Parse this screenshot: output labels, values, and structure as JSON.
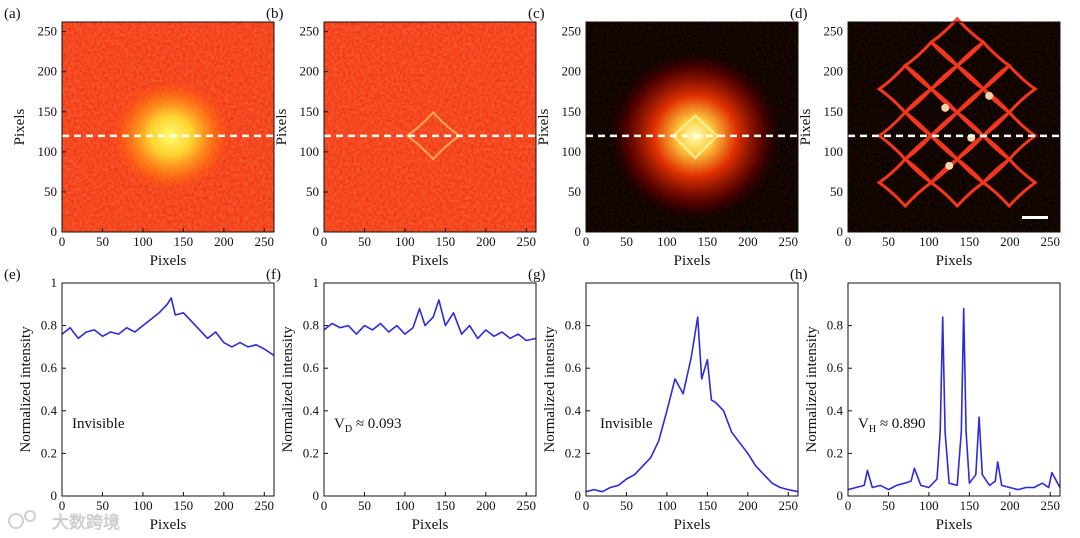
{
  "figure": {
    "watermark": "大数跨境",
    "colors": {
      "line": "#2b2bdd",
      "axis": "#111111",
      "hot_low": "#000000",
      "hot_high": "#ffff66"
    }
  },
  "chart_data": [
    {
      "type": "heatmap",
      "panel": "(a)",
      "xlabel": "Pixels",
      "ylabel": "Pixels",
      "xlim": [
        0,
        262
      ],
      "ylim": [
        0,
        262
      ],
      "xticks": [
        "0",
        "50",
        "100",
        "150",
        "200",
        "250"
      ],
      "yticks": [
        "0",
        "50",
        "100",
        "150",
        "200",
        "250"
      ],
      "background": "red",
      "pattern": "blob",
      "dashed_line_y": 120,
      "scale_bar": false
    },
    {
      "type": "heatmap",
      "panel": "(b)",
      "xlabel": "Pixels",
      "ylabel": "Pixels",
      "xlim": [
        0,
        262
      ],
      "ylim": [
        0,
        262
      ],
      "xticks": [
        "0",
        "50",
        "100",
        "150",
        "200",
        "250"
      ],
      "yticks": [
        "0",
        "50",
        "100",
        "150",
        "200",
        "250"
      ],
      "background": "red",
      "pattern": "faint-lattice",
      "dashed_line_y": 120,
      "scale_bar": false
    },
    {
      "type": "heatmap",
      "panel": "(c)",
      "xlabel": "Pixels",
      "ylabel": "Pixels",
      "xlim": [
        0,
        262
      ],
      "ylim": [
        0,
        262
      ],
      "xticks": [
        "0",
        "50",
        "100",
        "150",
        "200",
        "250"
      ],
      "yticks": [
        "0",
        "50",
        "100",
        "150",
        "200",
        "250"
      ],
      "background": "black",
      "pattern": "glow",
      "dashed_line_y": 120,
      "scale_bar": false
    },
    {
      "type": "heatmap",
      "panel": "(d)",
      "xlabel": "Pixels",
      "ylabel": "Pixels",
      "xlim": [
        0,
        262
      ],
      "ylim": [
        0,
        262
      ],
      "xticks": [
        "0",
        "50",
        "100",
        "150",
        "200",
        "250"
      ],
      "yticks": [
        "0",
        "50",
        "100",
        "150",
        "200",
        "250"
      ],
      "background": "black",
      "pattern": "lattice",
      "dashed_line_y": 120,
      "scale_bar": true
    },
    {
      "type": "line",
      "panel": "(e)",
      "xlabel": "Pixels",
      "ylabel": "Normalized intensity",
      "xlim": [
        0,
        262
      ],
      "ylim": [
        0,
        1
      ],
      "xticks": [
        "0",
        "50",
        "100",
        "150",
        "200",
        "250"
      ],
      "yticks": [
        "0",
        "0.2",
        "0.4",
        "0.6",
        "0.8",
        "1"
      ],
      "annotation": "Invisible",
      "annotation_sub": "",
      "x": [
        0,
        10,
        20,
        30,
        40,
        50,
        60,
        70,
        80,
        90,
        100,
        110,
        120,
        130,
        135,
        140,
        150,
        160,
        170,
        180,
        190,
        200,
        210,
        220,
        230,
        240,
        250,
        262
      ],
      "y": [
        0.76,
        0.79,
        0.74,
        0.77,
        0.78,
        0.75,
        0.77,
        0.76,
        0.79,
        0.77,
        0.8,
        0.83,
        0.86,
        0.9,
        0.93,
        0.85,
        0.86,
        0.82,
        0.78,
        0.74,
        0.77,
        0.72,
        0.7,
        0.72,
        0.7,
        0.71,
        0.69,
        0.66
      ]
    },
    {
      "type": "line",
      "panel": "(f)",
      "xlabel": "Pixels",
      "ylabel": "Normalized intensity",
      "xlim": [
        0,
        262
      ],
      "ylim": [
        0,
        1
      ],
      "xticks": [
        "0",
        "50",
        "100",
        "150",
        "200",
        "250"
      ],
      "yticks": [
        "0",
        "0.2",
        "0.4",
        "0.6",
        "0.8",
        "1"
      ],
      "annotation": "V",
      "annotation_sub": "D",
      "annotation_rest": " ≈ 0.093",
      "x": [
        0,
        10,
        20,
        30,
        40,
        50,
        60,
        70,
        80,
        90,
        100,
        110,
        118,
        125,
        135,
        142,
        150,
        160,
        170,
        180,
        190,
        200,
        210,
        220,
        230,
        240,
        250,
        262
      ],
      "y": [
        0.78,
        0.81,
        0.79,
        0.8,
        0.76,
        0.8,
        0.78,
        0.81,
        0.77,
        0.8,
        0.76,
        0.79,
        0.88,
        0.8,
        0.84,
        0.92,
        0.8,
        0.86,
        0.76,
        0.8,
        0.74,
        0.78,
        0.75,
        0.77,
        0.74,
        0.76,
        0.73,
        0.74
      ]
    },
    {
      "type": "line",
      "panel": "(g)",
      "xlabel": "Pixels",
      "ylabel": "Normalized intensity",
      "xlim": [
        0,
        262
      ],
      "ylim": [
        0,
        1
      ],
      "xticks": [
        "0",
        "50",
        "100",
        "150",
        "200",
        "250"
      ],
      "yticks": [
        "0",
        "0.2",
        "0.4",
        "0.6",
        "0.8"
      ],
      "annotation": "Invisible",
      "annotation_sub": "",
      "x": [
        0,
        10,
        20,
        30,
        40,
        50,
        60,
        70,
        80,
        90,
        100,
        110,
        120,
        130,
        138,
        143,
        150,
        155,
        160,
        170,
        180,
        190,
        200,
        210,
        220,
        230,
        240,
        250,
        262
      ],
      "y": [
        0.02,
        0.03,
        0.02,
        0.04,
        0.05,
        0.08,
        0.1,
        0.14,
        0.18,
        0.26,
        0.4,
        0.55,
        0.48,
        0.65,
        0.84,
        0.55,
        0.64,
        0.45,
        0.44,
        0.4,
        0.3,
        0.25,
        0.2,
        0.14,
        0.1,
        0.06,
        0.04,
        0.03,
        0.02
      ]
    },
    {
      "type": "line",
      "panel": "(h)",
      "xlabel": "Pixels",
      "ylabel": "Normalized intensity",
      "xlim": [
        0,
        262
      ],
      "ylim": [
        0,
        1
      ],
      "xticks": [
        "0",
        "50",
        "100",
        "150",
        "200",
        "250"
      ],
      "yticks": [
        "0",
        "0.2",
        "0.4",
        "0.6",
        "0.8"
      ],
      "annotation": "V",
      "annotation_sub": "H",
      "annotation_rest": " ≈ 0.890",
      "x": [
        0,
        10,
        20,
        24,
        30,
        40,
        50,
        60,
        70,
        78,
        82,
        90,
        100,
        110,
        114,
        117,
        120,
        125,
        135,
        140,
        143,
        146,
        150,
        158,
        162,
        166,
        175,
        182,
        185,
        190,
        200,
        210,
        220,
        230,
        240,
        248,
        252,
        262
      ],
      "y": [
        0.03,
        0.04,
        0.05,
        0.12,
        0.04,
        0.05,
        0.03,
        0.05,
        0.06,
        0.07,
        0.13,
        0.05,
        0.04,
        0.08,
        0.3,
        0.84,
        0.3,
        0.06,
        0.05,
        0.3,
        0.88,
        0.3,
        0.06,
        0.1,
        0.37,
        0.1,
        0.05,
        0.07,
        0.16,
        0.05,
        0.04,
        0.03,
        0.04,
        0.04,
        0.06,
        0.04,
        0.11,
        0.04
      ]
    }
  ]
}
